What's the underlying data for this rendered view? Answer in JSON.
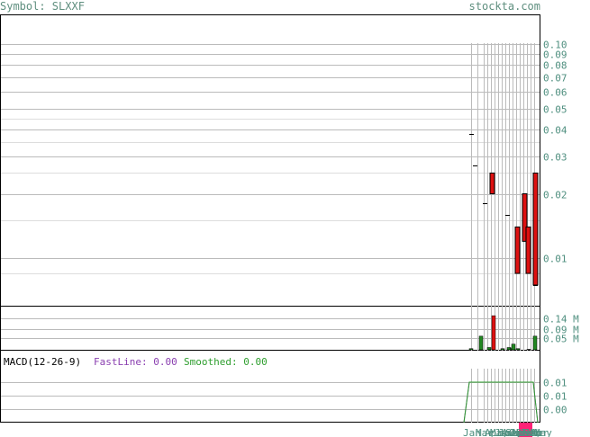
{
  "header": {
    "symbol_label": "Symbol: SLXXF",
    "site": "stockta.com"
  },
  "macd": {
    "label": "MACD(12-26-9)",
    "fastline_label": "FastLine: 0.00",
    "smoothed_label": "Smoothed: 0.00",
    "fast_color": "#8a3fb0",
    "smoothed_color": "#2e9e2e"
  },
  "colors": {
    "down_candle": "#dd1111",
    "volume_bar": "#228822",
    "grid": "#bbbbbb",
    "highlight": "#ff2277"
  },
  "chart_data": [
    {
      "type": "candlestick",
      "scale": "log",
      "ylim": [
        0.0075,
        0.1
      ],
      "y_ticks": [
        "0.10",
        "0.09",
        "0.08",
        "0.07",
        "0.06",
        "0.05",
        "0.04",
        "0.03",
        "0.02",
        "0.01"
      ],
      "y_tick_values": [
        0.1,
        0.09,
        0.08,
        0.07,
        0.06,
        0.05,
        0.04,
        0.03,
        0.02,
        0.01
      ],
      "x_labels": [
        "Jan",
        "Mar",
        "Apr",
        "May",
        "Jun",
        "Jul",
        "Aug",
        "Sep",
        "Oct",
        "Nov",
        "Dec",
        "Jan",
        "Feb",
        "Mar",
        "Apr",
        "May"
      ],
      "shown_x_labels": [
        "Jan",
        "Mar",
        "Apr",
        "May",
        "Jun",
        "Jul",
        "Aug",
        "Sep",
        "Oct",
        "Nov",
        "Dec",
        "Jan",
        "Feb",
        "Mar",
        "Apr",
        "May"
      ],
      "candles": [
        {
          "slot": 0,
          "open": 0.038,
          "close": 0.038
        },
        {
          "slot": 1,
          "open": 0.027,
          "close": 0.027
        },
        {
          "slot": 2,
          "open": 0.018,
          "close": 0.018
        },
        {
          "slot": 3,
          "open": 0.025,
          "close": 0.02
        },
        {
          "slot": 5,
          "open": 0.016,
          "close": 0.016
        },
        {
          "slot": 6,
          "open": 0.014,
          "close": 0.0085
        },
        {
          "slot": 7,
          "open": 0.02,
          "close": 0.012
        },
        {
          "slot": 8,
          "open": 0.014,
          "close": 0.0085
        },
        {
          "slot": 9,
          "open": 0.0075,
          "close": 0.0075
        },
        {
          "slot": 10,
          "open": 0.025,
          "close": 0.0075
        }
      ]
    },
    {
      "type": "bar",
      "title": "Volume",
      "y_ticks": [
        "0.14 M",
        "0.09 M",
        "0.05 M"
      ],
      "y_tick_values": [
        0.14,
        0.09,
        0.05
      ],
      "ylim": [
        0,
        0.19
      ],
      "values": [
        0.005,
        0.06,
        0.01,
        0.15,
        0.005,
        0.01,
        0.005,
        0.025,
        0.005,
        0.002,
        0.06
      ]
    },
    {
      "type": "line",
      "title": "MACD(12-26-9)",
      "y_ticks": [
        "0.01",
        "0.01",
        "0.00"
      ],
      "y_tick_values": [
        0.012,
        0.008,
        0.004
      ],
      "ylim": [
        0.0,
        0.016
      ],
      "series": [
        {
          "name": "FastLine",
          "values": [
            0.0,
            0.012,
            0.012,
            0.012,
            0.012,
            0.012,
            0.012,
            0.012,
            0.0
          ]
        },
        {
          "name": "Smoothed",
          "values": [
            0.0,
            0.012,
            0.012,
            0.012,
            0.012,
            0.012,
            0.012,
            0.012,
            0.0
          ]
        }
      ]
    }
  ]
}
